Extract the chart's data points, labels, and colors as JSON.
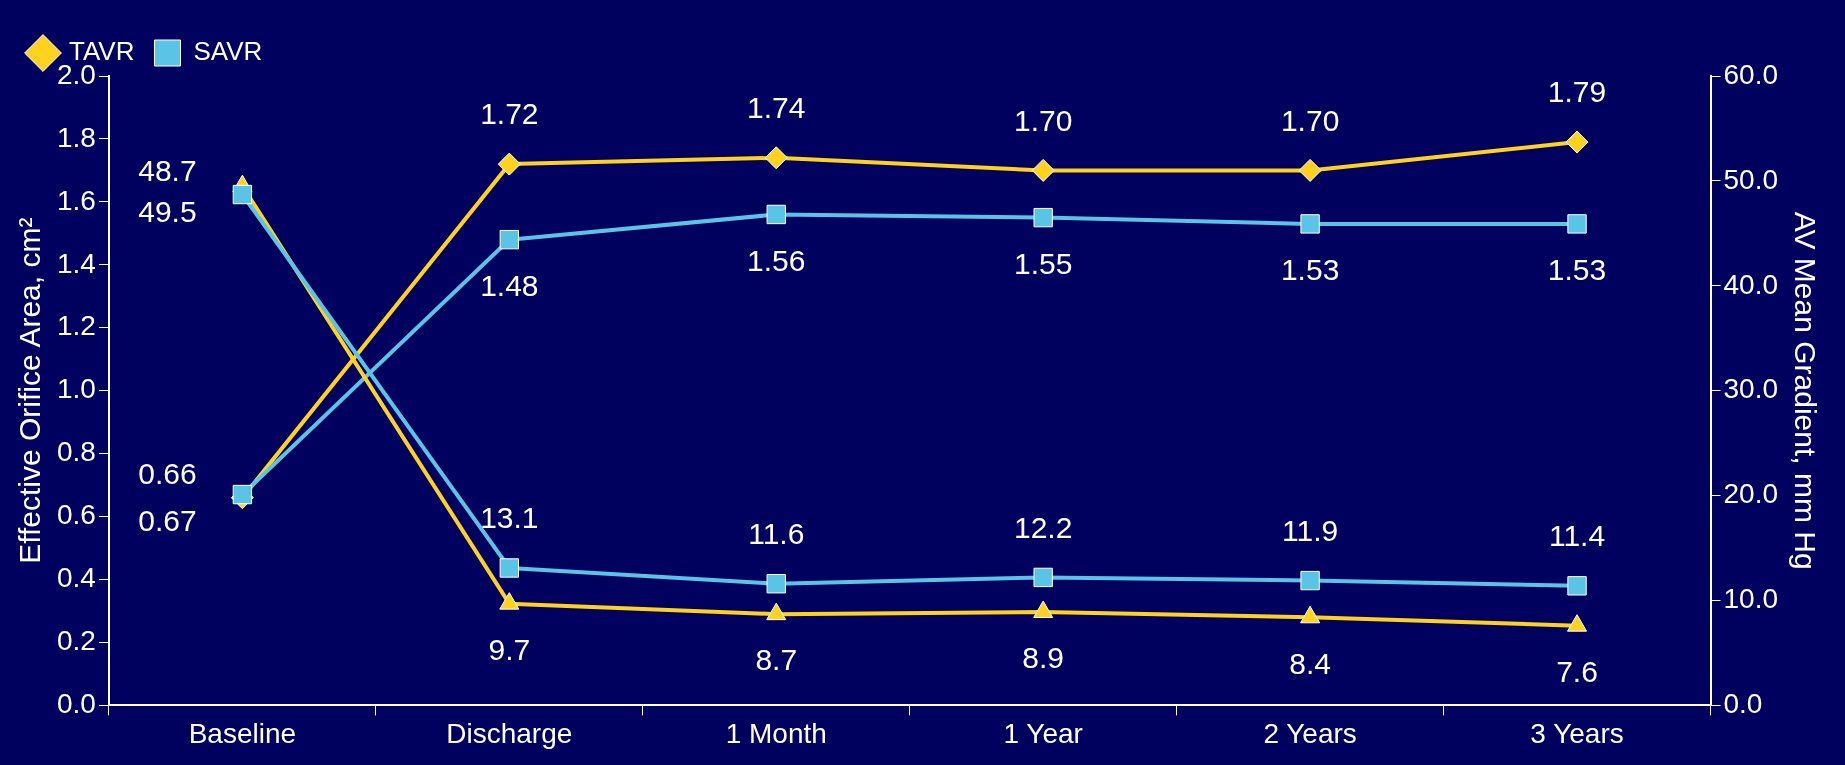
{
  "chart_data": {
    "type": "line",
    "categories": [
      "Baseline",
      "Discharge",
      "1 Month",
      "1 Year",
      "2 Years",
      "3 Years"
    ],
    "ylabel": "Effective Orifice Area, cm²",
    "y2label": "AV Mean Gradient, mm Hg",
    "ylim": [
      0,
      2
    ],
    "yticks": [
      {
        "value": 0,
        "label": "0.0"
      },
      {
        "value": 0.2,
        "label": "0.2"
      },
      {
        "value": 0.4,
        "label": "0.4"
      },
      {
        "value": 0.6,
        "label": "0.6"
      },
      {
        "value": 0.8,
        "label": "0.8"
      },
      {
        "value": 1,
        "label": "1.0"
      },
      {
        "value": 1.2,
        "label": "1.2"
      },
      {
        "value": 1.4,
        "label": "1.4"
      },
      {
        "value": 1.6,
        "label": "1.6"
      },
      {
        "value": 1.8,
        "label": "1.8"
      },
      {
        "value": 2,
        "label": "2.0"
      }
    ],
    "y2lim": [
      0,
      60
    ],
    "y2ticks": [
      {
        "value": 0,
        "label": "0.0"
      },
      {
        "value": 10,
        "label": "10.0"
      },
      {
        "value": 20,
        "label": "20.0"
      },
      {
        "value": 30,
        "label": "30.0"
      },
      {
        "value": 40,
        "label": "40.0"
      },
      {
        "value": 50,
        "label": "50.0"
      },
      {
        "value": 60,
        "label": "60.0"
      }
    ],
    "series": [
      {
        "name": "TAVR",
        "color": "#ffd21f",
        "marker": "diamond",
        "values": [
          0.66,
          1.72,
          1.74,
          1.7,
          1.7,
          1.79
        ],
        "value_labels": [
          "0.66",
          "1.72",
          "1.74",
          "1.70",
          "1.70",
          "1.79"
        ]
      },
      {
        "name": "SAVR",
        "color": "#5ac4e6",
        "marker": "square",
        "values": [
          0.67,
          1.48,
          1.56,
          1.55,
          1.53,
          1.53
        ],
        "value_labels": [
          "0.67",
          "1.48",
          "1.56",
          "1.55",
          "1.53",
          "1.53"
        ]
      },
      {
        "color": "#ffd21f",
        "marker": "triangle",
        "axis": "y2",
        "values": [
          49.5,
          9.7,
          8.7,
          8.9,
          8.4,
          7.6
        ],
        "value_labels": [
          "49.5",
          "9.7",
          "8.7",
          "8.9",
          "8.4",
          "7.6"
        ]
      },
      {
        "color": "#5ac4e6",
        "marker": "square",
        "axis": "y2",
        "values": [
          48.7,
          13.1,
          11.6,
          12.2,
          11.9,
          11.4
        ],
        "value_labels": [
          "48.7",
          "13.1",
          "11.6",
          "12.2",
          "11.9",
          "11.4"
        ]
      }
    ],
    "legend": "top left",
    "grid": false
  }
}
